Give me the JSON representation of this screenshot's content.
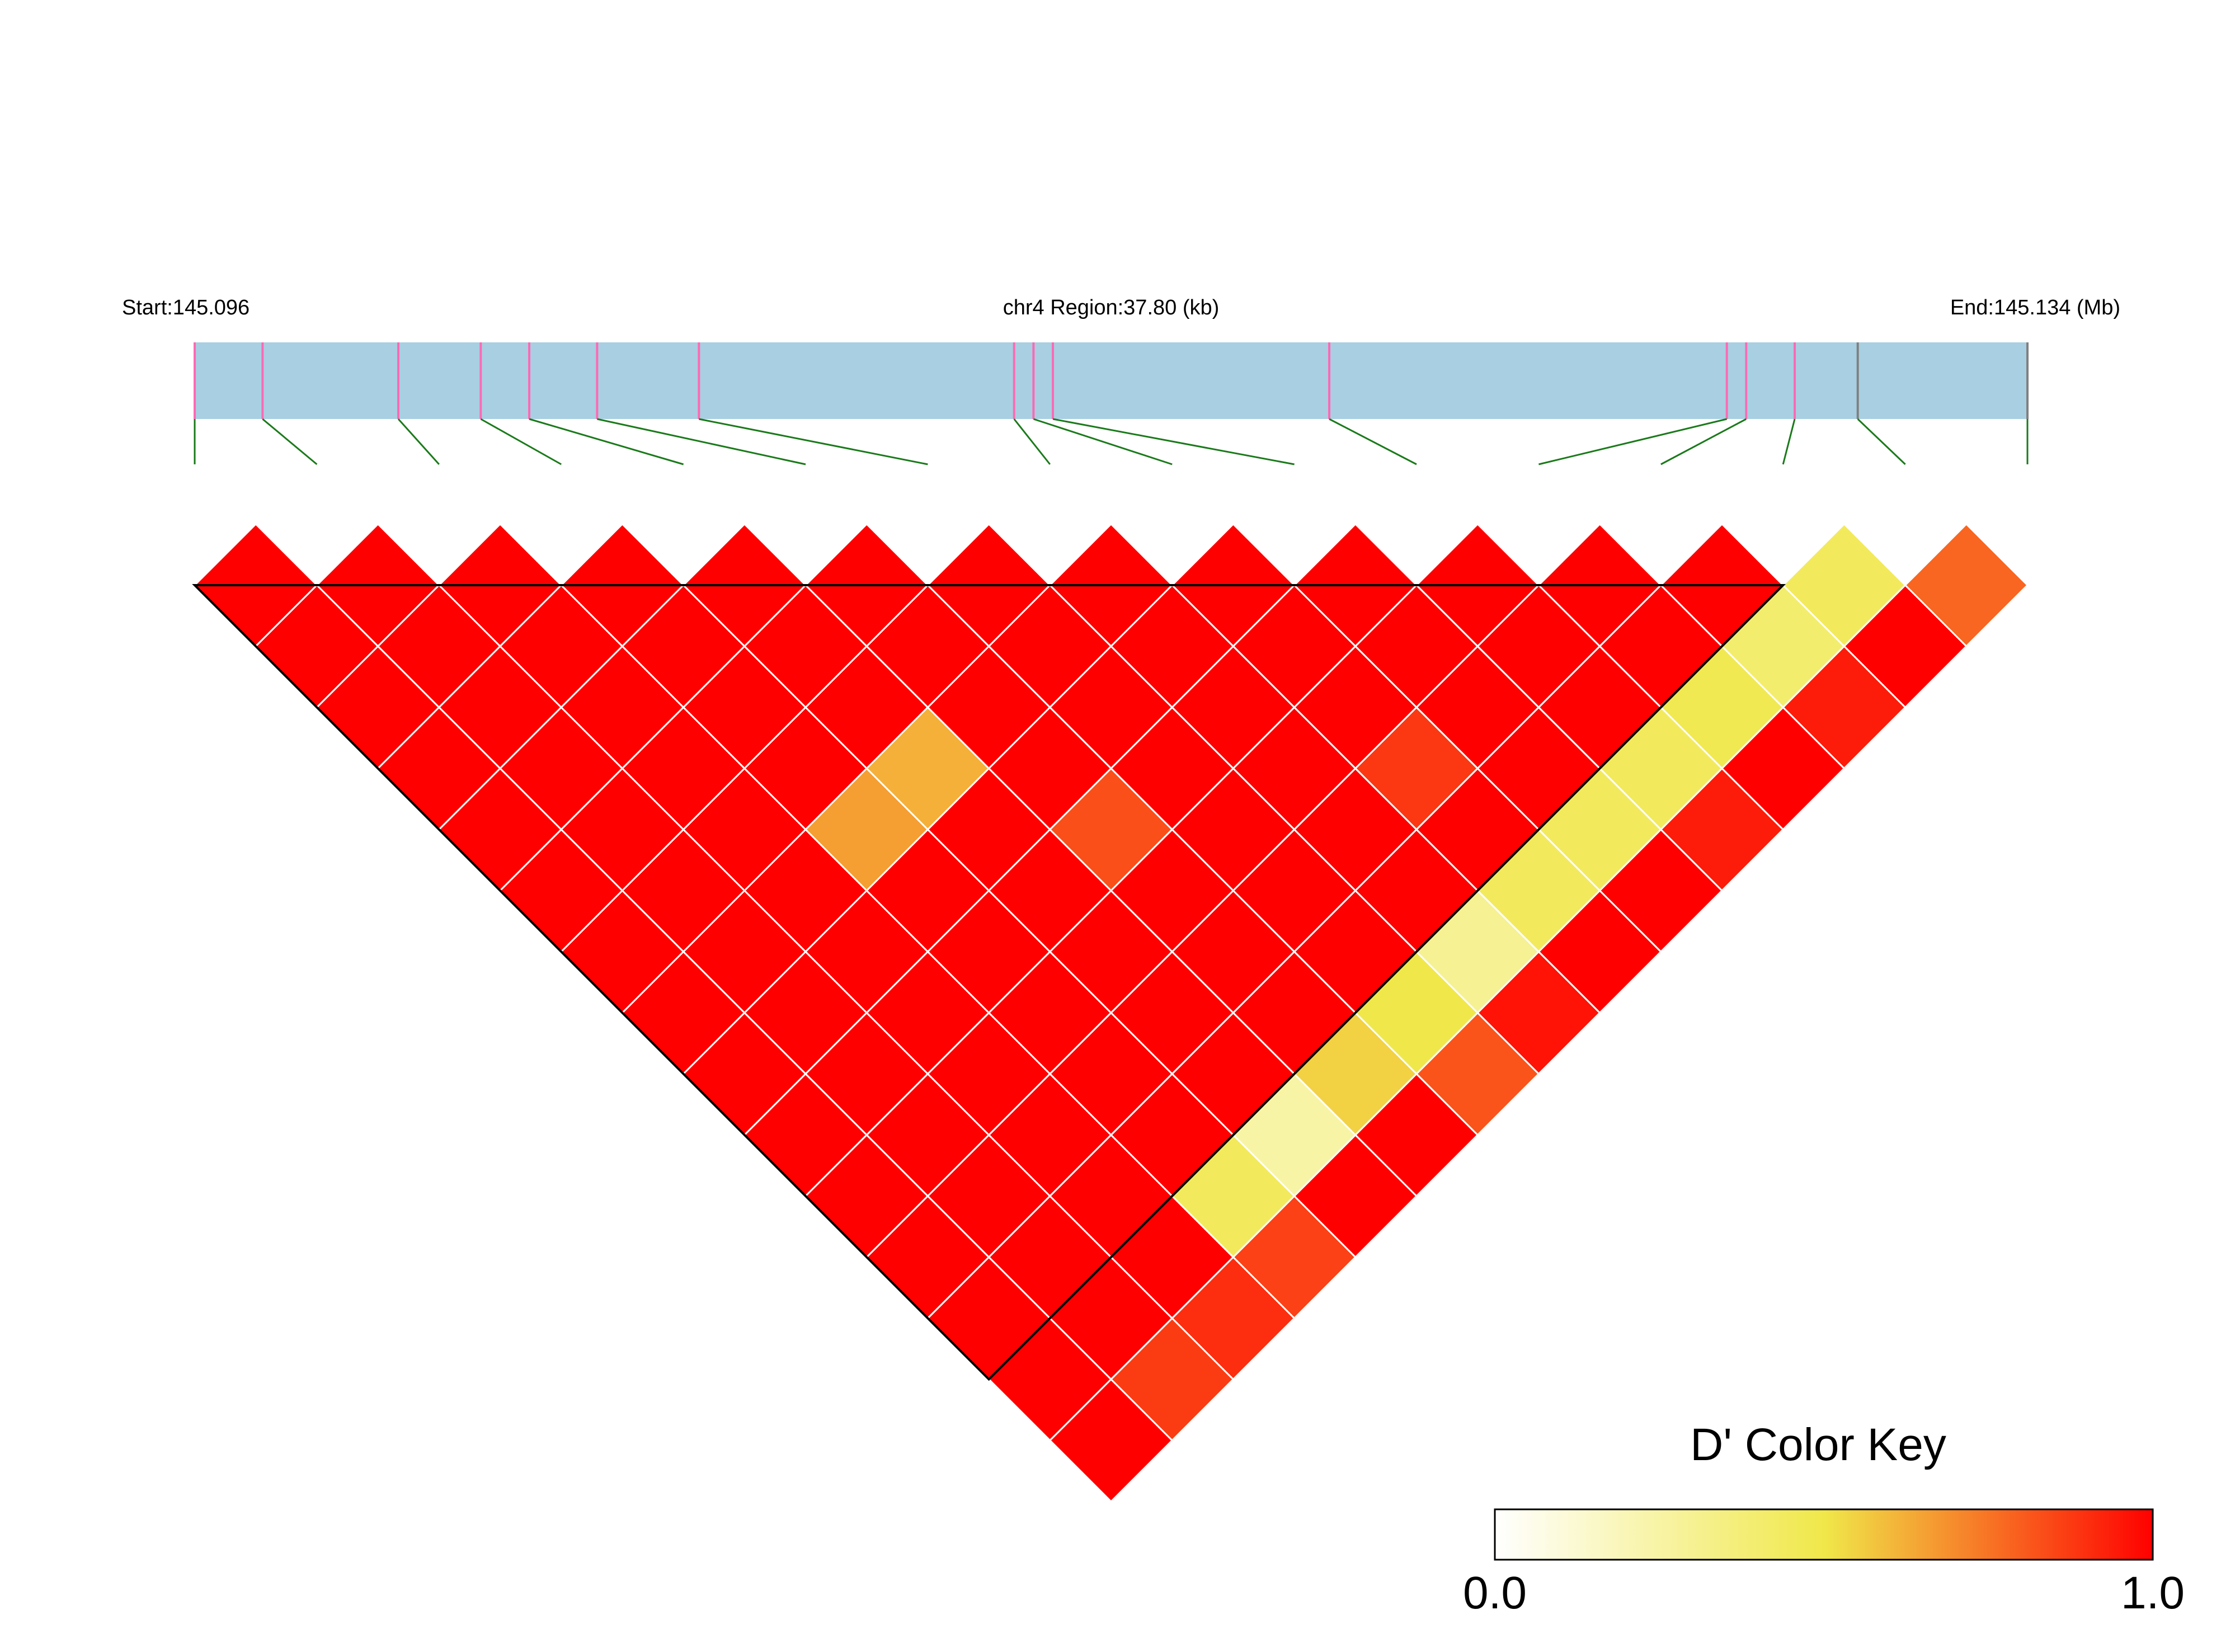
{
  "chart_data": {
    "type": "heatmap",
    "subtype": "ld-triangle",
    "header": {
      "start_label": "Start:145.096",
      "region_label": "chr4 Region:37.80 (kb)",
      "end_label": "End:145.134 (Mb)"
    },
    "region": {
      "chromosome": "chr4",
      "start_mb": 145.096,
      "end_mb": 145.134,
      "length_kb": 37.8
    },
    "snp_count": 16,
    "snp_positions_kb": [
      0.0,
      1.4,
      4.2,
      5.9,
      6.9,
      8.3,
      10.4,
      16.9,
      17.3,
      17.7,
      23.4,
      31.6,
      32.0,
      33.0,
      34.3,
      37.8
    ],
    "snp_marker_colors": [
      "#ff69b4",
      "#ff69b4",
      "#ff69b4",
      "#ff69b4",
      "#ff69b4",
      "#ff69b4",
      "#ff69b4",
      "#ff69b4",
      "#ff69b4",
      "#ff69b4",
      "#ff69b4",
      "#ff69b4",
      "#ff69b4",
      "#ff69b4",
      "#808080",
      "#808080"
    ],
    "dprime_exceptions": [
      {
        "snp_i": 14,
        "snp_j": 15,
        "value": 0.45
      },
      {
        "snp_i": 15,
        "snp_j": 16,
        "value": 0.78
      },
      {
        "snp_i": 13,
        "snp_j": 15,
        "value": 0.4
      },
      {
        "snp_i": 12,
        "snp_j": 15,
        "value": 0.48
      },
      {
        "snp_i": 11,
        "snp_j": 15,
        "value": 0.45
      },
      {
        "snp_i": 10,
        "snp_j": 15,
        "value": 0.45
      },
      {
        "snp_i": 9,
        "snp_j": 15,
        "value": 0.45
      },
      {
        "snp_i": 8,
        "snp_j": 15,
        "value": 0.3
      },
      {
        "snp_i": 7,
        "snp_j": 15,
        "value": 0.5
      },
      {
        "snp_i": 6,
        "snp_j": 15,
        "value": 0.55
      },
      {
        "snp_i": 5,
        "snp_j": 15,
        "value": 0.25
      },
      {
        "snp_i": 4,
        "snp_j": 15,
        "value": 0.45
      },
      {
        "snp_i": 9,
        "snp_j": 13,
        "value": 0.88
      },
      {
        "snp_i": 6,
        "snp_j": 11,
        "value": 0.83
      },
      {
        "snp_i": 5,
        "snp_j": 9,
        "value": 0.62
      },
      {
        "snp_i": 4,
        "snp_j": 9,
        "value": 0.66
      },
      {
        "snp_i": 7,
        "snp_j": 16,
        "value": 0.82
      },
      {
        "snp_i": 4,
        "snp_j": 16,
        "value": 0.86
      },
      {
        "snp_i": 3,
        "snp_j": 16,
        "value": 0.9
      },
      {
        "snp_i": 2,
        "snp_j": 16,
        "value": 0.87
      },
      {
        "snp_i": 11,
        "snp_j": 16,
        "value": 0.94
      },
      {
        "snp_i": 13,
        "snp_j": 16,
        "value": 0.94
      },
      {
        "snp_i": 8,
        "snp_j": 16,
        "value": 0.96
      }
    ],
    "dprime_default": 1.0,
    "block": {
      "from_snp": 1,
      "to_snp": 14
    },
    "color_key": {
      "title": "D' Color Key",
      "min_label": "0.0",
      "max_label": "1.0",
      "stops": [
        "#ffffff",
        "#f0e84a",
        "#ff0000"
      ]
    }
  }
}
